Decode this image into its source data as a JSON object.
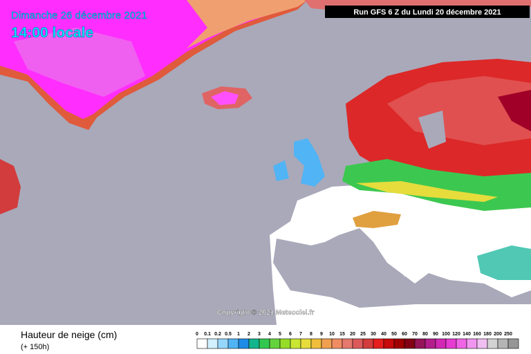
{
  "header": {
    "date": "Dimanche 26 décembre 2021",
    "time": "14:00 locale",
    "run": "Run GFS 6 Z du Lundi 20 décembre 2021"
  },
  "copyright": "Copyright © 2021 Meteociel.fr",
  "legend": {
    "title": "Hauteur de neige (cm)",
    "subtitle": "(+ 150h)",
    "labels": [
      "0",
      "0.1",
      "0.2",
      "0.5",
      "1",
      "2",
      "3",
      "4",
      "5",
      "6",
      "7",
      "8",
      "9",
      "10",
      "15",
      "20",
      "25",
      "30",
      "40",
      "50",
      "60",
      "70",
      "80",
      "90",
      "100",
      "120",
      "140",
      "160",
      "180",
      "200",
      "250"
    ],
    "colors": [
      "#ffffff",
      "#d2f0ff",
      "#96d7ff",
      "#50b4f5",
      "#1e8ce6",
      "#14b48c",
      "#32c850",
      "#64d23c",
      "#96dc28",
      "#c8e632",
      "#e6dc3c",
      "#f0be3c",
      "#f0a050",
      "#f08c64",
      "#e6786e",
      "#dc5a5a",
      "#d23c3c",
      "#e61e1e",
      "#c80a0a",
      "#a00000",
      "#820014",
      "#96145a",
      "#b41e8c",
      "#d228b4",
      "#e63cd2",
      "#f064e6",
      "#f096f0",
      "#f0bef0",
      "#d2d2d2",
      "#b4b4b4",
      "#969696"
    ]
  }
}
